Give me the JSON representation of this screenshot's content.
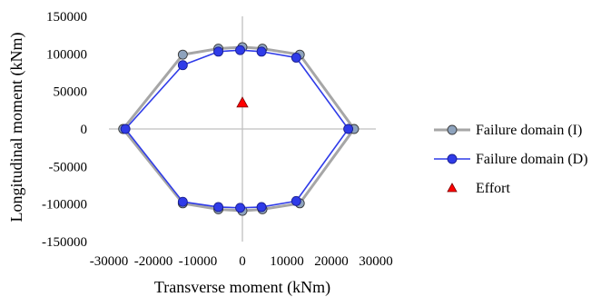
{
  "chart_data": {
    "type": "scatter",
    "title": "",
    "xlabel": "Transverse moment (kNm)",
    "ylabel": "Longitudinal moment (kNm)",
    "xlim": [
      -30000,
      30000
    ],
    "ylim": [
      -150000,
      150000
    ],
    "xticks": [
      -30000,
      -20000,
      -10000,
      0,
      10000,
      20000,
      30000
    ],
    "xtick_labels": [
      "-30000",
      "-20000",
      "-10000",
      "0",
      "10000",
      "20000",
      "30000"
    ],
    "yticks": [
      -150000,
      -100000,
      -50000,
      0,
      50000,
      100000,
      150000
    ],
    "ytick_labels": [
      "-150000",
      "-100000",
      "-50000",
      "0",
      "50000",
      "100000",
      "150000"
    ],
    "grid": false,
    "legend_position": "right",
    "series": [
      {
        "name": "Failure domain (I)",
        "color": "#a6a6a6",
        "marker_color": "#8ea3bd",
        "marker": "circle",
        "x": [
          -26800,
          -13400,
          -5400,
          0,
          4500,
          12900,
          25100,
          12900,
          4500,
          0,
          -5400,
          -13400,
          -26800
        ],
        "y": [
          0,
          99000,
          107000,
          109000,
          107000,
          99000,
          0,
          -99000,
          -107000,
          -109000,
          -107000,
          -99000,
          0
        ]
      },
      {
        "name": "Failure domain (D)",
        "color": "#2f3be8",
        "marker_color": "#2f3be8",
        "marker": "circle",
        "x": [
          -26300,
          -13400,
          -5400,
          -500,
          4300,
          12100,
          23800,
          12100,
          4300,
          -500,
          -5400,
          -13400,
          -26300
        ],
        "y": [
          0,
          85000,
          103000,
          105000,
          103000,
          95000,
          0,
          -96000,
          -104000,
          -105000,
          -104000,
          -97000,
          0
        ]
      },
      {
        "name": "Effort",
        "color": "#ff0000",
        "marker": "triangle",
        "x": [
          0
        ],
        "y": [
          35000
        ]
      }
    ]
  }
}
